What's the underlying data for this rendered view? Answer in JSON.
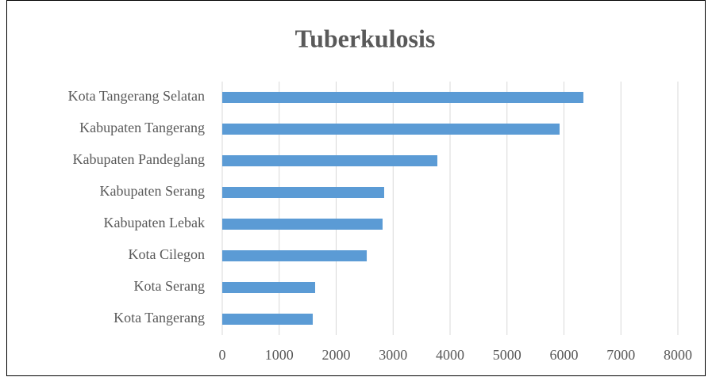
{
  "chart_data": {
    "type": "bar",
    "orientation": "horizontal",
    "title": "Tuberkulosis",
    "categories": [
      "Kota Tangerang Selatan",
      "Kabupaten Tangerang",
      "Kabupaten Pandeglang",
      "Kabupaten Serang",
      "Kabupaten Lebak",
      "Kota Cilegon",
      "Kota Serang",
      "Kota Tangerang"
    ],
    "values": [
      6341,
      5923,
      3777,
      2843,
      2815,
      2537,
      1631,
      1589
    ],
    "color": "#5b9bd5",
    "xlim": [
      0,
      8000
    ],
    "xticks": [
      0,
      1000,
      2000,
      3000,
      4000,
      5000,
      6000,
      7000,
      8000
    ],
    "grid": true
  }
}
